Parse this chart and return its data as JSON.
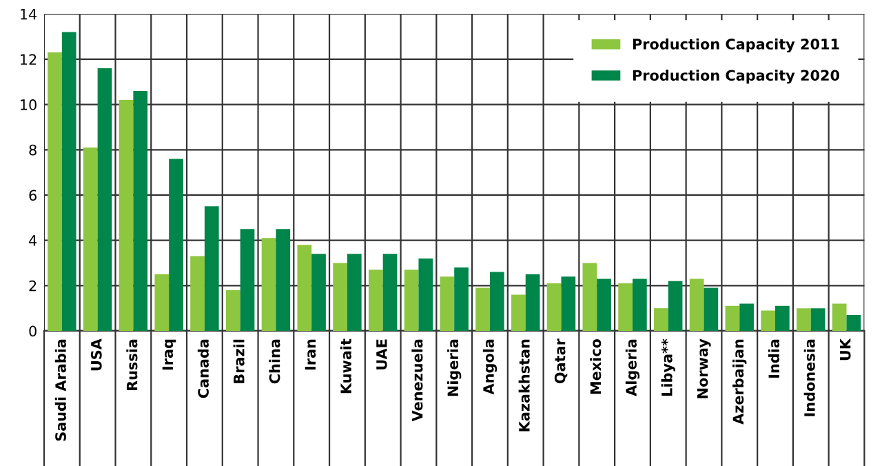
{
  "chart_data": {
    "type": "bar",
    "categories": [
      "Saudi Arabia",
      "USA",
      "Russia",
      "Iraq",
      "Canada",
      "Brazil",
      "China",
      "Iran",
      "Kuwait",
      "UAE",
      "Venezuela",
      "Nigeria",
      "Angola",
      "Kazakhstan",
      "Qatar",
      "Mexico",
      "Algeria",
      "Libya**",
      "Norway",
      "Azerbaijan",
      "India",
      "Indonesia",
      "UK"
    ],
    "series": [
      {
        "name": "Production Capacity 2011",
        "color": "#8dc63f",
        "values": [
          12.3,
          8.1,
          10.2,
          2.5,
          3.3,
          1.8,
          4.1,
          3.8,
          3.0,
          2.7,
          2.7,
          2.4,
          1.9,
          1.6,
          2.1,
          3.0,
          2.1,
          1.0,
          2.3,
          1.1,
          0.9,
          1.0,
          1.2
        ]
      },
      {
        "name": "Production Capacity 2020",
        "color": "#00854a",
        "values": [
          13.2,
          11.6,
          10.6,
          7.6,
          5.5,
          4.5,
          4.5,
          3.4,
          3.4,
          3.4,
          3.2,
          2.8,
          2.6,
          2.5,
          2.4,
          2.3,
          2.3,
          2.2,
          1.9,
          1.2,
          1.1,
          1.0,
          0.7
        ]
      }
    ],
    "ylim": [
      0,
      14
    ],
    "yticks": [
      0,
      2,
      4,
      6,
      8,
      10,
      12,
      14
    ],
    "grid": true,
    "legend": "top right"
  }
}
